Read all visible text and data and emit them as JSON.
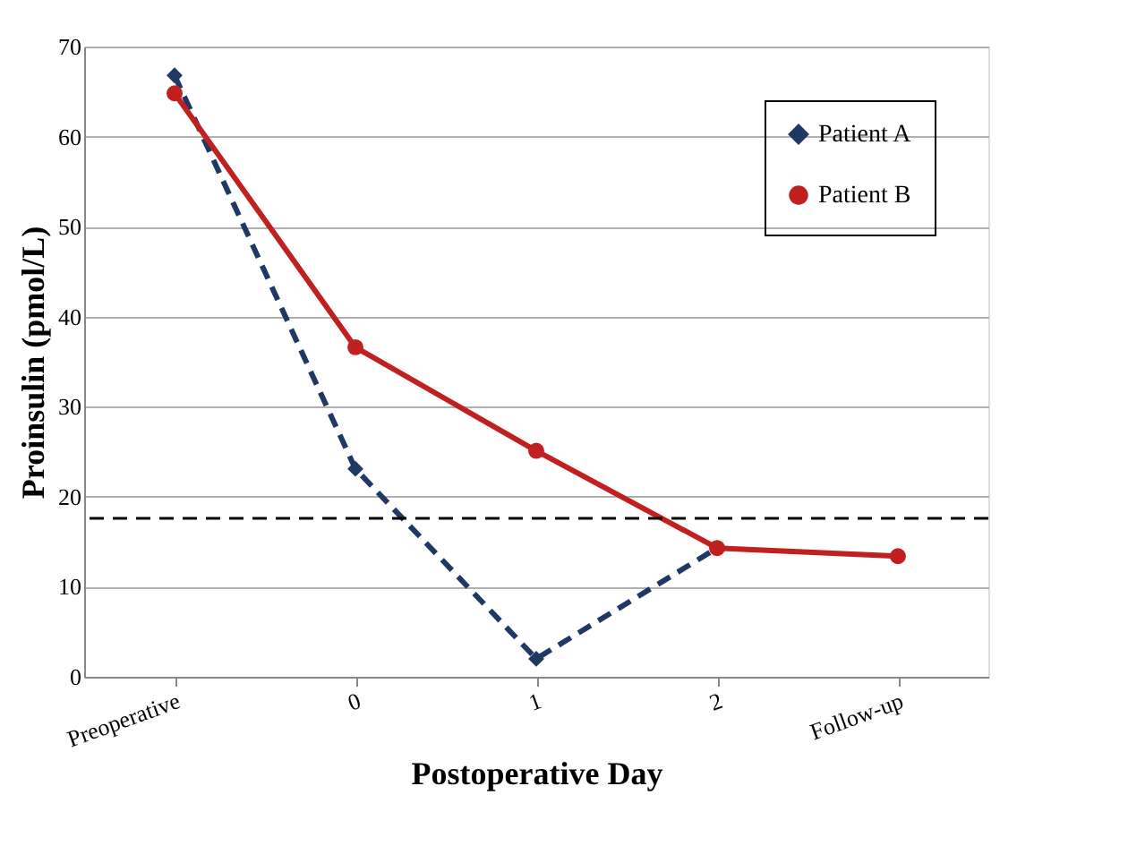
{
  "chart_data": {
    "type": "line",
    "xlabel": "Postoperative Day",
    "ylabel": "Proinsulin (pmol/L)",
    "categories": [
      "Preoperative",
      "0",
      "1",
      "2",
      "Follow-up"
    ],
    "series": [
      {
        "name": "Patient A",
        "color": "#1f3864",
        "values": [
          66.8,
          23.1,
          2.0,
          14.3,
          null
        ],
        "marker": "diamond",
        "line_style": "dashed"
      },
      {
        "name": "Patient B",
        "color": "#c0201f",
        "values": [
          64.8,
          36.6,
          25.1,
          14.3,
          13.4
        ],
        "marker": "circle",
        "line_style": "solid"
      }
    ],
    "ylim": [
      0,
      70
    ],
    "yticks": [
      0,
      10,
      20,
      30,
      40,
      50,
      60,
      70
    ],
    "ref_lines": [
      {
        "axis": "y",
        "value": 17.6,
        "color": "#000000",
        "line_style": "dashed"
      }
    ],
    "grid": "y",
    "legend": "top right"
  }
}
